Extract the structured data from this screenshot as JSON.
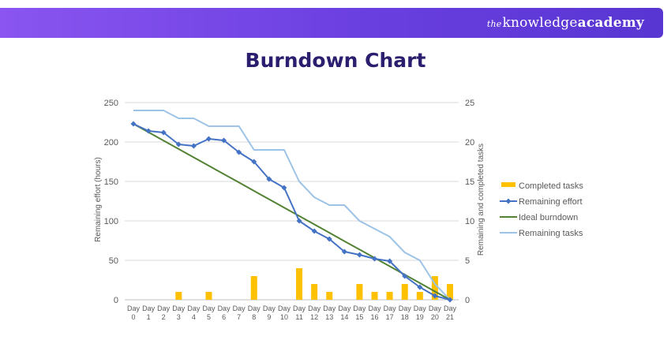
{
  "brand": {
    "the": "the",
    "knowledge": "knowledge",
    "academy": "academy"
  },
  "chart_data": {
    "type": "bar+line",
    "title": "Burndown Chart",
    "categories": [
      "Day 0",
      "Day 1",
      "Day 2",
      "Day 3",
      "Day 4",
      "Day 5",
      "Day 6",
      "Day 7",
      "Day 8",
      "Day 9",
      "Day 10",
      "Day 11",
      "Day 12",
      "Day 13",
      "Day 14",
      "Day 15",
      "Day 16",
      "Day 17",
      "Day 18",
      "Day 19",
      "Day 20",
      "Day 21"
    ],
    "ylabel_left": "Remaining effort (hours)",
    "ylabel_right": "Remaining and completed tasks",
    "ylim_left": [
      0,
      250
    ],
    "ylim_right": [
      0,
      25
    ],
    "yticks_left": [
      0,
      50,
      100,
      150,
      200,
      250
    ],
    "yticks_right": [
      0,
      5,
      10,
      15,
      20,
      25
    ],
    "grid": true,
    "legend_position": "right",
    "series": [
      {
        "name": "Completed tasks",
        "type": "bar",
        "axis": "right",
        "color": "#FFC000",
        "values": [
          0,
          0,
          0,
          1,
          0,
          1,
          0,
          0,
          3,
          0,
          0,
          4,
          2,
          1,
          0,
          2,
          1,
          1,
          2,
          1,
          3,
          2
        ]
      },
      {
        "name": "Remaining effort",
        "type": "line",
        "axis": "left",
        "color": "#4472C4",
        "marker": "diamond",
        "values": [
          223,
          214,
          212,
          197,
          195,
          204,
          202,
          187,
          175,
          153,
          142,
          100,
          87,
          77,
          61,
          57,
          52,
          49,
          30,
          16,
          5,
          0
        ]
      },
      {
        "name": "Ideal burndown",
        "type": "line",
        "axis": "left",
        "color": "#548235",
        "values": [
          223,
          212.4,
          201.8,
          191.1,
          180.5,
          169.9,
          159.3,
          148.7,
          138.0,
          127.4,
          116.8,
          106.2,
          95.6,
          85.0,
          74.3,
          63.7,
          53.1,
          42.5,
          31.9,
          21.2,
          10.6,
          0
        ]
      },
      {
        "name": "Remaining tasks",
        "type": "line",
        "axis": "right",
        "color": "#9DC3E6",
        "values": [
          24,
          24,
          24,
          23,
          23,
          22,
          22,
          22,
          19,
          19,
          19,
          15,
          13,
          12,
          12,
          10,
          9,
          8,
          6,
          5,
          2,
          0
        ]
      }
    ]
  }
}
